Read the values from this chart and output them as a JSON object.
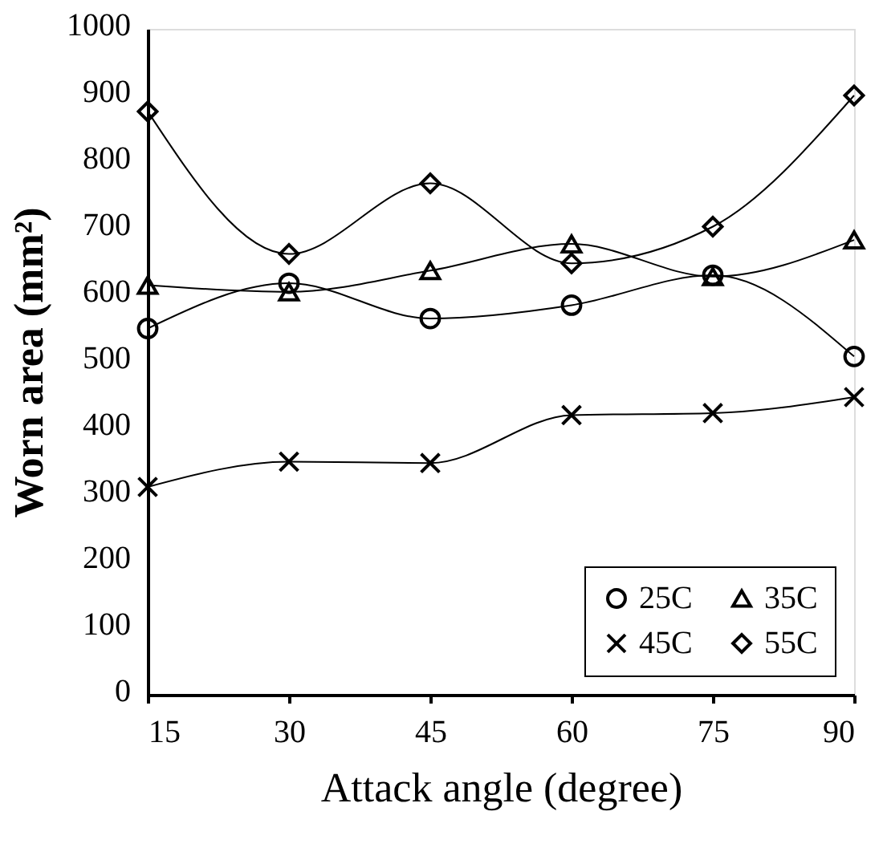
{
  "chart_data": {
    "type": "line",
    "xlabel": "Attack angle (degree)",
    "ylabel": "Worn area (mm²)",
    "x": [
      15,
      30,
      45,
      60,
      75,
      90
    ],
    "series": [
      {
        "name": "25C",
        "color": "#000000",
        "marker": "circle",
        "values": [
          550,
          618,
          565,
          585,
          630,
          508
        ]
      },
      {
        "name": "35C",
        "color": "#000000",
        "marker": "triangle",
        "values": [
          615,
          605,
          637,
          677,
          628,
          683
        ]
      },
      {
        "name": "45C",
        "color": "#000000",
        "marker": "cross",
        "values": [
          312,
          350,
          348,
          420,
          423,
          447
        ]
      },
      {
        "name": "55C",
        "color": "#000000",
        "marker": "diamond",
        "values": [
          876,
          662,
          768,
          648,
          703,
          900
        ]
      }
    ],
    "xlim": [
      15,
      90
    ],
    "xticks": [
      15,
      30,
      45,
      60,
      75,
      90
    ],
    "ylim": [
      0,
      1000
    ],
    "yticks": [
      0,
      100,
      200,
      300,
      400,
      500,
      600,
      700,
      800,
      900,
      1000
    ],
    "grid": false,
    "legend": "bottom right",
    "line_style": "solid"
  }
}
